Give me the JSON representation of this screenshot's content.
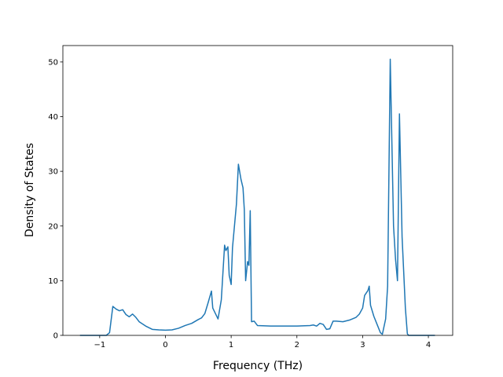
{
  "chart_data": {
    "type": "line",
    "xlabel": "Frequency (THz)",
    "ylabel": "Density of States",
    "color": "#1f77b4",
    "x": [
      -1.3,
      -0.9,
      -0.85,
      -0.8,
      -0.75,
      -0.7,
      -0.65,
      -0.6,
      -0.55,
      -0.5,
      -0.45,
      -0.4,
      -0.35,
      -0.3,
      -0.2,
      -0.1,
      0,
      0.1,
      0.2,
      0.3,
      0.4,
      0.5,
      0.55,
      0.6,
      0.65,
      0.7,
      0.72,
      0.8,
      0.85,
      0.9,
      0.92,
      0.95,
      0.97,
      1.0,
      1.02,
      1.08,
      1.11,
      1.15,
      1.18,
      1.2,
      1.22,
      1.25,
      1.27,
      1.29,
      1.31,
      1.35,
      1.4,
      1.6,
      2.0,
      2.2,
      2.25,
      2.3,
      2.35,
      2.4,
      2.45,
      2.5,
      2.55,
      2.6,
      2.7,
      2.8,
      2.9,
      2.95,
      3.0,
      3.03,
      3.08,
      3.1,
      3.12,
      3.17,
      3.22,
      3.27,
      3.3,
      3.35,
      3.38,
      3.42,
      3.47,
      3.5,
      3.53,
      3.56,
      3.6,
      3.65,
      3.68,
      3.7,
      4.1
    ],
    "values": [
      0,
      0,
      0.5,
      5.3,
      4.8,
      4.5,
      4.7,
      3.8,
      3.4,
      3.9,
      3.3,
      2.5,
      2.1,
      1.7,
      1.1,
      1.0,
      0.95,
      1.0,
      1.3,
      1.8,
      2.2,
      2.9,
      3.2,
      4.0,
      6.0,
      8.1,
      5.0,
      3.0,
      6.5,
      16.5,
      15.5,
      16.2,
      11,
      9.3,
      16,
      24,
      31.3,
      28.5,
      27,
      23,
      10,
      13.5,
      12.8,
      22.8,
      2.5,
      2.6,
      1.8,
      1.7,
      1.7,
      1.8,
      1.9,
      1.7,
      2.2,
      2.0,
      1.1,
      1.2,
      2.6,
      2.6,
      2.5,
      2.8,
      3.3,
      3.9,
      5.0,
      7.3,
      8.2,
      9.0,
      5.5,
      3.5,
      2.0,
      0.5,
      0.2,
      3,
      9,
      50.5,
      20,
      14,
      10,
      40.5,
      18,
      5,
      0.3,
      0,
      0
    ],
    "xlim": [
      -1.56,
      4.37
    ],
    "ylim": [
      0,
      53
    ],
    "xticks": [
      {
        "value": -1,
        "label": "−1"
      },
      0,
      1,
      2,
      3,
      4
    ],
    "yticks": [
      0,
      10,
      20,
      30,
      40,
      50
    ]
  }
}
